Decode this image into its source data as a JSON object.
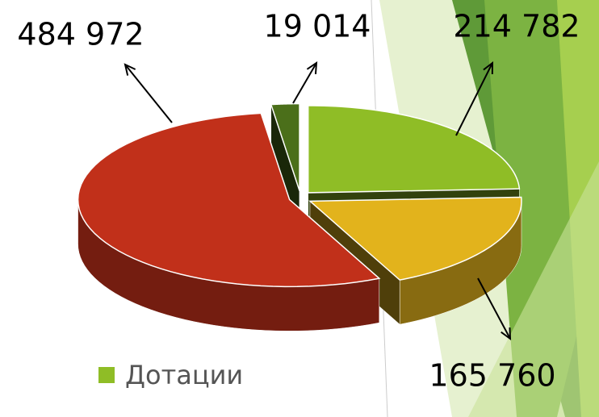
{
  "chart_data": {
    "type": "pie",
    "categories": [
      "Дотации",
      null,
      null,
      null
    ],
    "values": [
      214782,
      165760,
      484972,
      19014
    ],
    "value_labels": [
      "214 782",
      "165 760",
      "484 972",
      "19 014"
    ],
    "colors": [
      "#8fbd26",
      "#e2b31c",
      "#c1301a",
      "#4b6f1a"
    ]
  }
}
